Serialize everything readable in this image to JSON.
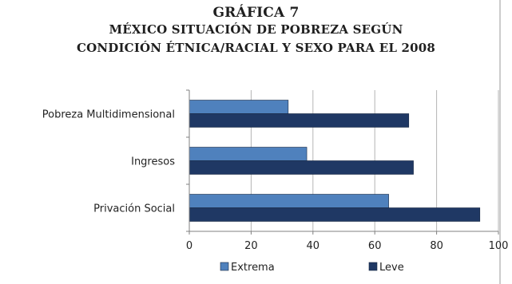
{
  "chart_data": {
    "type": "bar",
    "orientation": "horizontal",
    "title_lines": [
      "GRÁFICA 7",
      "MÉXICO SITUACIÓN DE POBREZA SEGÚN",
      "CONDICIÓN ÉTNICA/RACIAL Y SEXO PARA EL 2008"
    ],
    "categories": [
      "Pobreza Multidimensional",
      "Ingresos",
      "Privación Social"
    ],
    "series": [
      {
        "name": "Extrema",
        "color": "#4f81bd",
        "values": [
          32,
          38,
          64.5
        ]
      },
      {
        "name": "Leve",
        "color": "#1f3864",
        "values": [
          71,
          72.5,
          94
        ]
      }
    ],
    "xlim": [
      0,
      100
    ],
    "xticks": [
      0,
      20,
      40,
      60,
      80,
      100
    ],
    "grid": true,
    "legend_position": "bottom"
  }
}
